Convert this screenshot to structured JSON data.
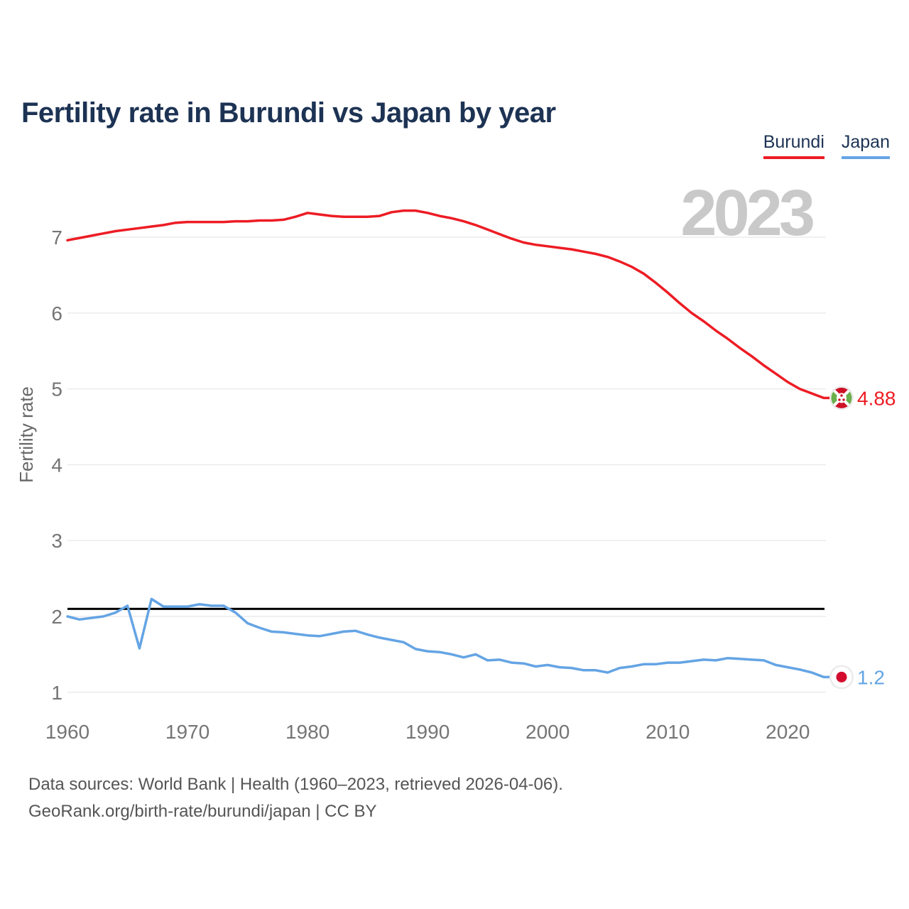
{
  "header": {
    "title": "Fertility rate in Burundi vs Japan by year"
  },
  "legend": {
    "items": [
      {
        "label": "Burundi",
        "color": "#ed1c24"
      },
      {
        "label": "Japan",
        "color": "#64a4e4"
      }
    ]
  },
  "footer": {
    "line1": "Data sources: World Bank | Health (1960–2023, retrieved 2026-04-06).",
    "line2": "GeoRank.org/birth-rate/burundi/japan | CC BY"
  },
  "chart_data": {
    "type": "line",
    "title": "Fertility rate in Burundi vs Japan by year",
    "xlabel": "",
    "ylabel": "Fertility rate",
    "watermark": "2023",
    "x_start": 1960,
    "x_end": 2023,
    "x_step": 1,
    "xticks": [
      1960,
      1970,
      1980,
      1990,
      2000,
      2010,
      2020
    ],
    "yticks": [
      1,
      2,
      3,
      4,
      5,
      6,
      7
    ],
    "ylim": [
      0.6,
      7.45
    ],
    "grid": true,
    "legend_position": "top-right",
    "reference_line": {
      "value": 2.1,
      "color": "#000000"
    },
    "series": [
      {
        "name": "Burundi",
        "color": "#ed1c24",
        "end_label": "4.88",
        "values": [
          6.96,
          6.99,
          7.02,
          7.05,
          7.08,
          7.1,
          7.12,
          7.14,
          7.16,
          7.19,
          7.2,
          7.2,
          7.2,
          7.2,
          7.21,
          7.21,
          7.22,
          7.22,
          7.23,
          7.27,
          7.32,
          7.3,
          7.28,
          7.27,
          7.27,
          7.27,
          7.28,
          7.33,
          7.35,
          7.35,
          7.32,
          7.28,
          7.25,
          7.21,
          7.16,
          7.1,
          7.04,
          6.98,
          6.93,
          6.9,
          6.88,
          6.86,
          6.84,
          6.81,
          6.78,
          6.74,
          6.68,
          6.61,
          6.52,
          6.4,
          6.27,
          6.13,
          6.0,
          5.89,
          5.77,
          5.66,
          5.54,
          5.43,
          5.31,
          5.2,
          5.09,
          5.0,
          4.94,
          4.88
        ]
      },
      {
        "name": "Japan",
        "color": "#64a4e4",
        "end_label": "1.2",
        "values": [
          2.0,
          1.96,
          1.98,
          2.0,
          2.05,
          2.14,
          1.58,
          2.23,
          2.13,
          2.13,
          2.13,
          2.16,
          2.14,
          2.14,
          2.05,
          1.91,
          1.85,
          1.8,
          1.79,
          1.77,
          1.75,
          1.74,
          1.77,
          1.8,
          1.81,
          1.76,
          1.72,
          1.69,
          1.66,
          1.57,
          1.54,
          1.53,
          1.5,
          1.46,
          1.5,
          1.42,
          1.43,
          1.39,
          1.38,
          1.34,
          1.36,
          1.33,
          1.32,
          1.29,
          1.29,
          1.26,
          1.32,
          1.34,
          1.37,
          1.37,
          1.39,
          1.39,
          1.41,
          1.43,
          1.42,
          1.45,
          1.44,
          1.43,
          1.42,
          1.36,
          1.33,
          1.3,
          1.26,
          1.2
        ]
      }
    ],
    "end_labels": {
      "burundi": "4.88",
      "japan": "1.2"
    }
  }
}
